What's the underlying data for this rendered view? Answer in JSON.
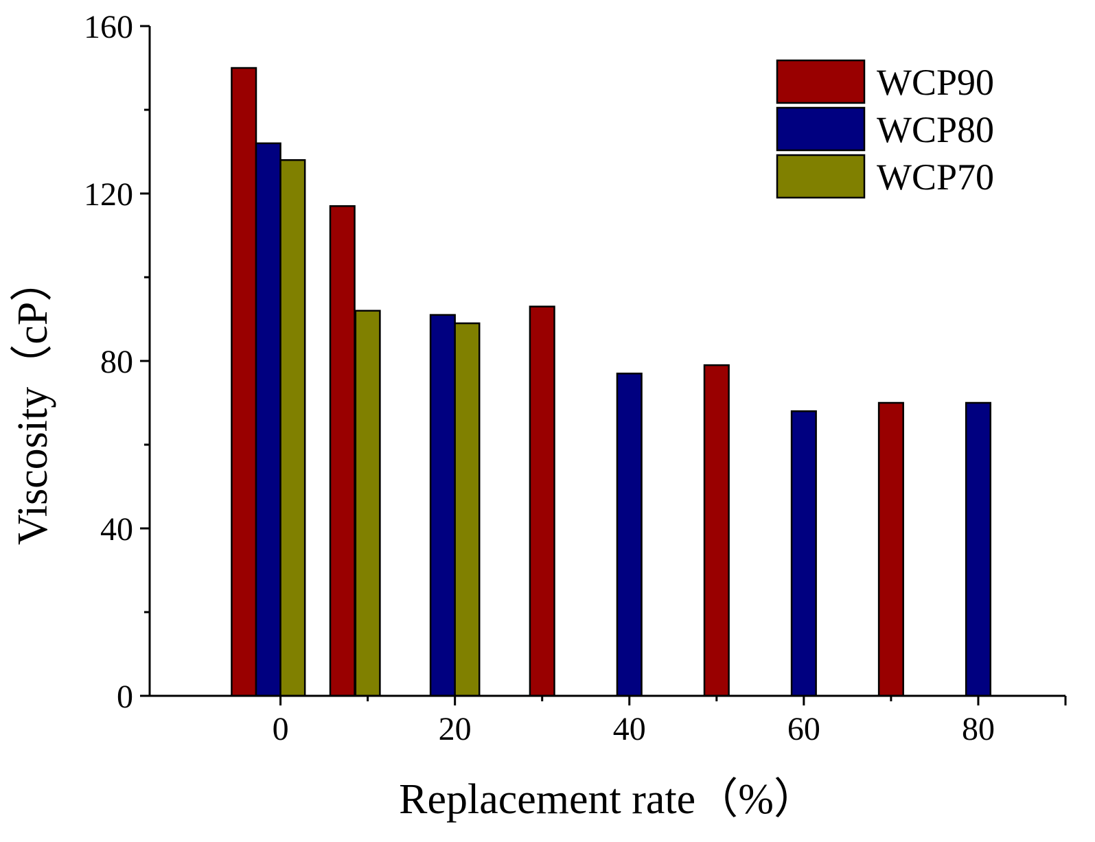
{
  "chart_data": {
    "type": "bar",
    "title": "",
    "xlabel": "Replacement rate（%）",
    "ylabel": "Viscosity（cP）",
    "xlim": [
      -15,
      90
    ],
    "ylim": [
      0,
      160
    ],
    "x_ticks": [
      0,
      20,
      40,
      60,
      80
    ],
    "x_tick_labels": [
      "0",
      "20",
      "40",
      "60",
      "80"
    ],
    "y_ticks": [
      0,
      40,
      80,
      120,
      160
    ],
    "y_tick_labels": [
      "0",
      "40",
      "80",
      "120",
      "160"
    ],
    "y_minor_ticks": [
      20,
      60,
      100,
      140
    ],
    "x_minor_ticks": [
      10,
      30,
      50,
      70
    ],
    "legend_position": "top-right",
    "bar_width": 2.8,
    "series": [
      {
        "name": "WCP90",
        "color": "#990000",
        "points": [
          {
            "x": 0,
            "value": 150
          },
          {
            "x": 10,
            "value": 117
          },
          {
            "x": 30,
            "value": 93
          },
          {
            "x": 50,
            "value": 79
          },
          {
            "x": 70,
            "value": 70
          }
        ]
      },
      {
        "name": "WCP80",
        "color": "#000080",
        "points": [
          {
            "x": 0,
            "value": 132
          },
          {
            "x": 20,
            "value": 91
          },
          {
            "x": 40,
            "value": 77
          },
          {
            "x": 60,
            "value": 68
          },
          {
            "x": 80,
            "value": 70
          }
        ]
      },
      {
        "name": "WCP70",
        "color": "#808000",
        "points": [
          {
            "x": 0,
            "value": 128
          },
          {
            "x": 10,
            "value": 92
          },
          {
            "x": 20,
            "value": 89
          }
        ]
      }
    ],
    "bar_offsets": {
      "WCP90": [
        -4.2,
        -2.9,
        0,
        0,
        0
      ],
      "WCP80": [
        -1.4,
        -1.4,
        0,
        0,
        0
      ],
      "WCP70": [
        1.4,
        0.0,
        1.4
      ]
    }
  }
}
